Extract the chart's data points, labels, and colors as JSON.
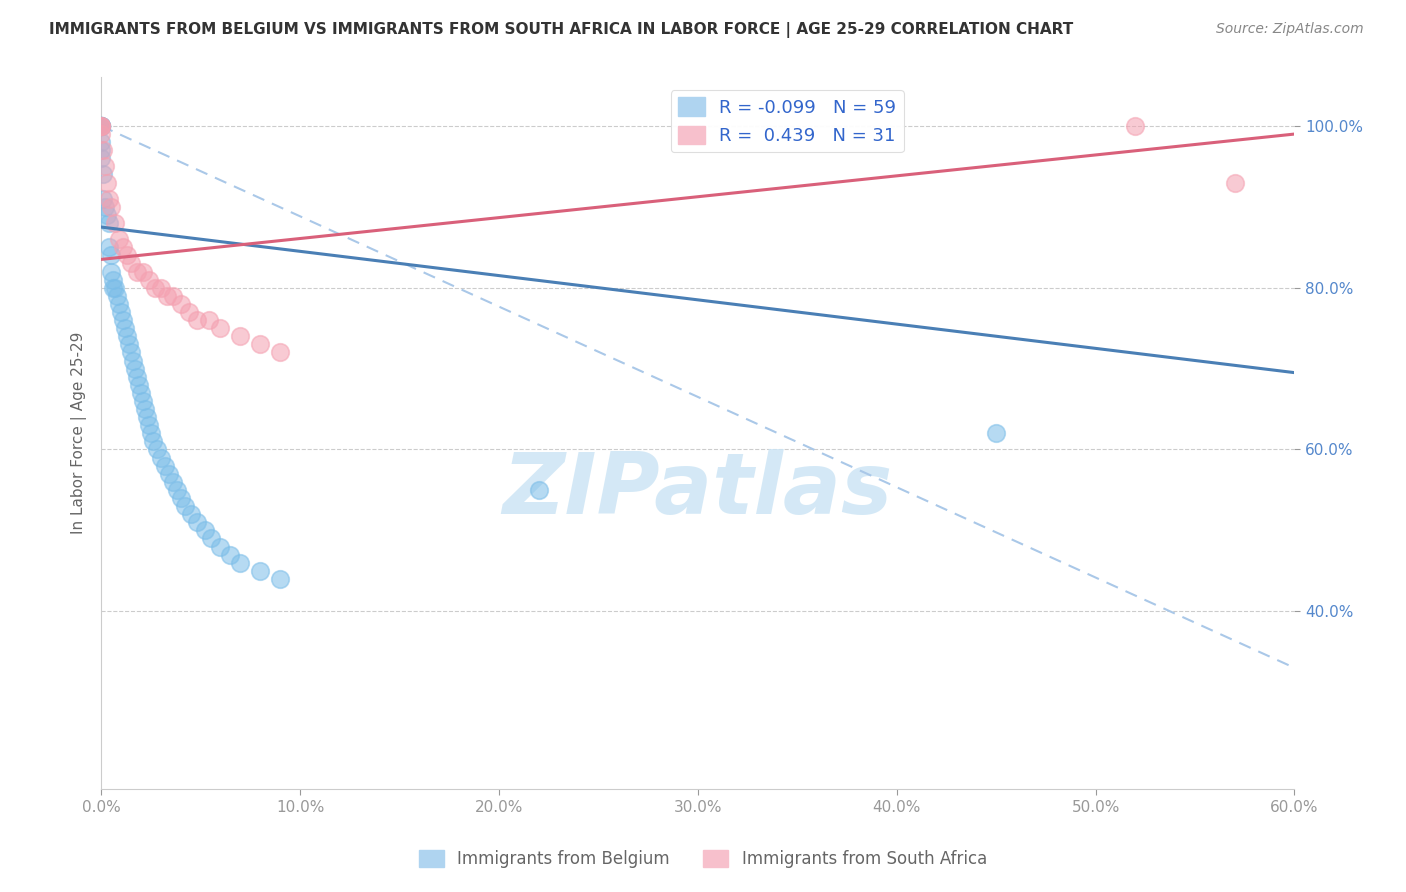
{
  "title": "IMMIGRANTS FROM BELGIUM VS IMMIGRANTS FROM SOUTH AFRICA IN LABOR FORCE | AGE 25-29 CORRELATION CHART",
  "source": "Source: ZipAtlas.com",
  "ylabel": "In Labor Force | Age 25-29",
  "legend_labels": [
    "Immigrants from Belgium",
    "Immigrants from South Africa"
  ],
  "R_belgium": -0.099,
  "N_belgium": 59,
  "R_sa": 0.439,
  "N_sa": 31,
  "xlim": [
    0.0,
    0.6
  ],
  "ylim": [
    0.18,
    1.06
  ],
  "xticks": [
    0.0,
    0.1,
    0.2,
    0.3,
    0.4,
    0.5,
    0.6
  ],
  "xticklabels": [
    "0.0%",
    "10.0%",
    "20.0%",
    "30.0%",
    "40.0%",
    "50.0%",
    "60.0%"
  ],
  "yticks": [
    0.4,
    0.6,
    0.8,
    1.0
  ],
  "yticklabels": [
    "40.0%",
    "60.0%",
    "80.0%",
    "100.0%"
  ],
  "color_belgium": "#7bbde8",
  "color_sa": "#f4a0b0",
  "color_bel_line": "#4a7fb5",
  "color_sa_line": "#d9607a",
  "color_dashed": "#aac8e8",
  "background_color": "#ffffff",
  "watermark_color": "#cde5f5",
  "belgium_x": [
    0.0,
    0.0,
    0.0,
    0.0,
    0.0,
    0.0,
    0.0,
    0.0,
    0.0,
    0.0,
    0.001,
    0.001,
    0.002,
    0.003,
    0.004,
    0.004,
    0.005,
    0.005,
    0.006,
    0.006,
    0.007,
    0.008,
    0.009,
    0.01,
    0.011,
    0.012,
    0.013,
    0.014,
    0.015,
    0.016,
    0.017,
    0.018,
    0.019,
    0.02,
    0.021,
    0.022,
    0.023,
    0.024,
    0.025,
    0.026,
    0.028,
    0.03,
    0.032,
    0.034,
    0.036,
    0.038,
    0.04,
    0.042,
    0.045,
    0.048,
    0.052,
    0.055,
    0.06,
    0.065,
    0.07,
    0.08,
    0.09,
    0.22,
    0.45
  ],
  "belgium_y": [
    1.0,
    1.0,
    1.0,
    1.0,
    1.0,
    1.0,
    1.0,
    0.98,
    0.97,
    0.96,
    0.94,
    0.91,
    0.9,
    0.89,
    0.88,
    0.85,
    0.84,
    0.82,
    0.81,
    0.8,
    0.8,
    0.79,
    0.78,
    0.77,
    0.76,
    0.75,
    0.74,
    0.73,
    0.72,
    0.71,
    0.7,
    0.69,
    0.68,
    0.67,
    0.66,
    0.65,
    0.64,
    0.63,
    0.62,
    0.61,
    0.6,
    0.59,
    0.58,
    0.57,
    0.56,
    0.55,
    0.54,
    0.53,
    0.52,
    0.51,
    0.5,
    0.49,
    0.48,
    0.47,
    0.46,
    0.45,
    0.44,
    0.55,
    0.62
  ],
  "sa_x": [
    0.0,
    0.0,
    0.0,
    0.0,
    0.001,
    0.002,
    0.003,
    0.004,
    0.005,
    0.007,
    0.009,
    0.011,
    0.013,
    0.015,
    0.018,
    0.021,
    0.024,
    0.027,
    0.03,
    0.033,
    0.036,
    0.04,
    0.044,
    0.048,
    0.054,
    0.06,
    0.07,
    0.08,
    0.09,
    0.52,
    0.57
  ],
  "sa_y": [
    1.0,
    1.0,
    1.0,
    0.99,
    0.97,
    0.95,
    0.93,
    0.91,
    0.9,
    0.88,
    0.86,
    0.85,
    0.84,
    0.83,
    0.82,
    0.82,
    0.81,
    0.8,
    0.8,
    0.79,
    0.79,
    0.78,
    0.77,
    0.76,
    0.76,
    0.75,
    0.74,
    0.73,
    0.72,
    1.0,
    0.93
  ],
  "bel_line_x": [
    0.0,
    0.6
  ],
  "bel_line_y": [
    0.875,
    0.695
  ],
  "sa_line_x": [
    0.0,
    0.6
  ],
  "sa_line_y": [
    0.835,
    0.99
  ],
  "dash_line_x": [
    0.0,
    0.6
  ],
  "dash_line_y": [
    1.0,
    0.33
  ]
}
